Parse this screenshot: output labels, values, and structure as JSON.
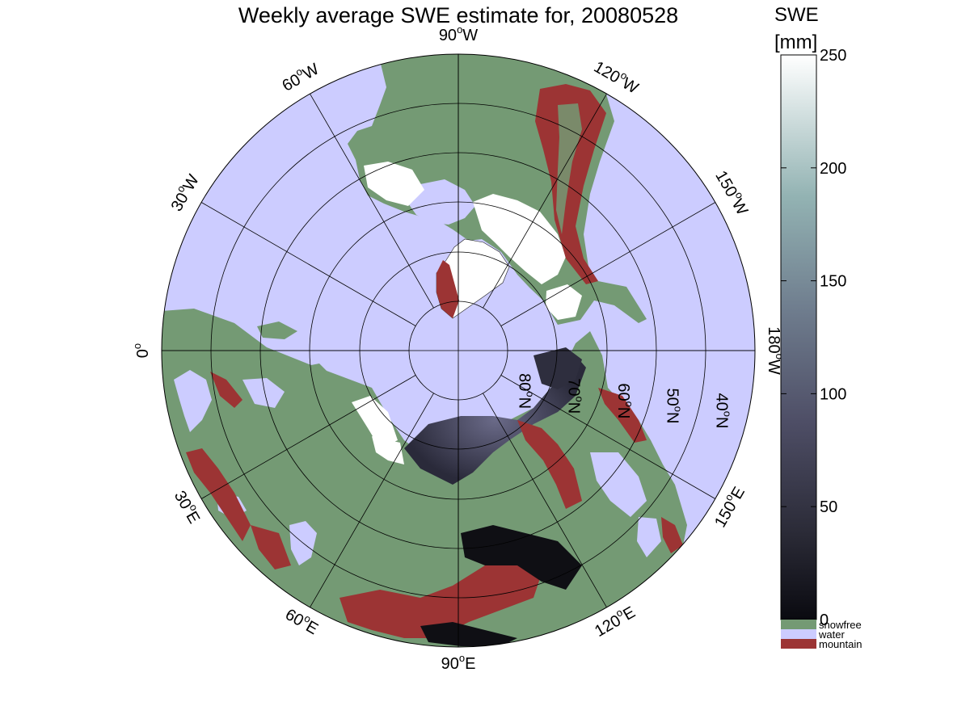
{
  "title": "Weekly average SWE estimate for, 20080528",
  "map": {
    "projection": "north polar stereographic",
    "meridian_labels": [
      {
        "lon": 0,
        "base": "0",
        "sup": "o",
        "suffix": ""
      },
      {
        "lon": 30,
        "base": "30",
        "sup": "o",
        "suffix": "E"
      },
      {
        "lon": 60,
        "base": "60",
        "sup": "o",
        "suffix": "E"
      },
      {
        "lon": 90,
        "base": "90",
        "sup": "o",
        "suffix": "E"
      },
      {
        "lon": 120,
        "base": "120",
        "sup": "o",
        "suffix": "E"
      },
      {
        "lon": 150,
        "base": "150",
        "sup": "o",
        "suffix": "E"
      },
      {
        "lon": 180,
        "base": "180",
        "sup": "o",
        "suffix": "W"
      },
      {
        "lon": -150,
        "base": "150",
        "sup": "o",
        "suffix": "W"
      },
      {
        "lon": -120,
        "base": "120",
        "sup": "o",
        "suffix": "W"
      },
      {
        "lon": -90,
        "base": "90",
        "sup": "o",
        "suffix": "W"
      },
      {
        "lon": -60,
        "base": "60",
        "sup": "o",
        "suffix": "W"
      },
      {
        "lon": -30,
        "base": "30",
        "sup": "o",
        "suffix": "W"
      }
    ],
    "parallel_labels": [
      {
        "lat": 80,
        "base": "80",
        "sup": "o",
        "suffix": "N"
      },
      {
        "lat": 70,
        "base": "70",
        "sup": "o",
        "suffix": "N"
      },
      {
        "lat": 60,
        "base": "60",
        "sup": "o",
        "suffix": "N"
      },
      {
        "lat": 50,
        "base": "50",
        "sup": "o",
        "suffix": "N"
      },
      {
        "lat": 40,
        "base": "40",
        "sup": "o",
        "suffix": "N"
      }
    ],
    "colors": {
      "ocean": "#ccccff",
      "snowfree": "#749a74",
      "mountain": "#9c3434",
      "snow_low": "#1a1a24",
      "snow_mid": "#565670",
      "snow_high": "#ffffff",
      "grid": "#000000"
    }
  },
  "colorbar": {
    "title_line1": "SWE",
    "title_line2": "[mm]",
    "min": 0,
    "max": 250,
    "ticks": [
      0,
      50,
      100,
      150,
      200,
      250
    ],
    "categories": [
      {
        "label": "snowfree",
        "color": "#749a74"
      },
      {
        "label": "water",
        "color": "#ccccff"
      },
      {
        "label": "mountain",
        "color": "#9c3434"
      }
    ]
  }
}
